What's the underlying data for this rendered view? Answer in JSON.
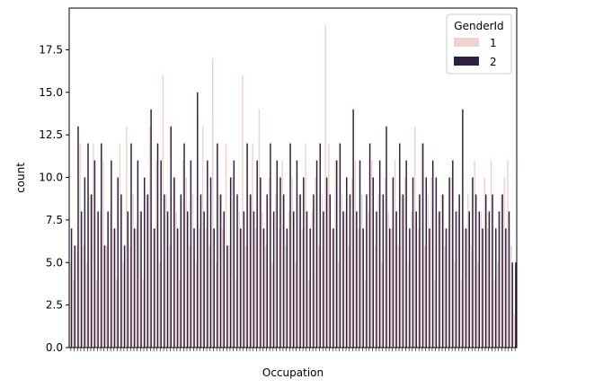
{
  "chart_data": {
    "type": "bar",
    "xlabel": "Occupation",
    "ylabel": "count",
    "ylim": [
      0,
      19.95
    ],
    "yticks": [
      0.0,
      2.5,
      5.0,
      7.5,
      10.0,
      12.5,
      15.0,
      17.5
    ],
    "ytick_labels": [
      "0.0",
      "2.5",
      "5.0",
      "7.5",
      "10.0",
      "12.5",
      "15.0",
      "17.5"
    ],
    "legend": {
      "title": "GenderId",
      "position": "upper-right"
    },
    "series": [
      {
        "name": "1",
        "color": "#eed4cf",
        "values": [
          5,
          4,
          6,
          12,
          6,
          5,
          9,
          12,
          4,
          8,
          11,
          6,
          8,
          7,
          4,
          12,
          5,
          13,
          6,
          9,
          7,
          8,
          4,
          9,
          13,
          7,
          11,
          5,
          16,
          9,
          6,
          10,
          8,
          4,
          11,
          10,
          6,
          9,
          5,
          7,
          13,
          7,
          6,
          17,
          5,
          9,
          7,
          12,
          6,
          10,
          4,
          8,
          16,
          6,
          9,
          12,
          7,
          14,
          8,
          6,
          10,
          5,
          9,
          7,
          11,
          6,
          8,
          10,
          5,
          9,
          7,
          12,
          4,
          8,
          10,
          6,
          9,
          19,
          12,
          7,
          11,
          5,
          9,
          8,
          6,
          10,
          11,
          7,
          9,
          4,
          8,
          11,
          6,
          9,
          5,
          10,
          8,
          7,
          11,
          6,
          9,
          10,
          5,
          8,
          13,
          7,
          12,
          6,
          9,
          10,
          4,
          8,
          9,
          6,
          7,
          10,
          5,
          8,
          4,
          7,
          9,
          6,
          11,
          5,
          8,
          10,
          7,
          11,
          4,
          5,
          9,
          10,
          11,
          6,
          2
        ]
      },
      {
        "name": "2",
        "color": "#2d2140",
        "values": [
          7,
          6,
          13,
          8,
          10,
          12,
          9,
          11,
          8,
          12,
          6,
          8,
          11,
          7,
          10,
          9,
          6,
          8,
          12,
          7,
          11,
          8,
          10,
          9,
          14,
          7,
          12,
          11,
          9,
          8,
          13,
          10,
          7,
          9,
          12,
          8,
          11,
          7,
          15,
          9,
          8,
          11,
          10,
          7,
          12,
          9,
          8,
          6,
          10,
          11,
          9,
          7,
          8,
          12,
          9,
          8,
          11,
          10,
          7,
          9,
          12,
          8,
          11,
          10,
          9,
          7,
          12,
          8,
          11,
          9,
          10,
          8,
          7,
          9,
          11,
          12,
          8,
          10,
          9,
          7,
          11,
          12,
          8,
          10,
          9,
          14,
          8,
          11,
          7,
          9,
          12,
          10,
          8,
          11,
          9,
          13,
          7,
          10,
          8,
          12,
          9,
          11,
          7,
          10,
          8,
          9,
          12,
          10,
          7,
          11,
          10,
          8,
          9,
          7,
          10,
          11,
          8,
          9,
          14,
          7,
          8,
          10,
          9,
          8,
          7,
          9,
          8,
          9,
          7,
          8,
          9,
          7,
          8,
          5,
          5
        ]
      }
    ]
  }
}
